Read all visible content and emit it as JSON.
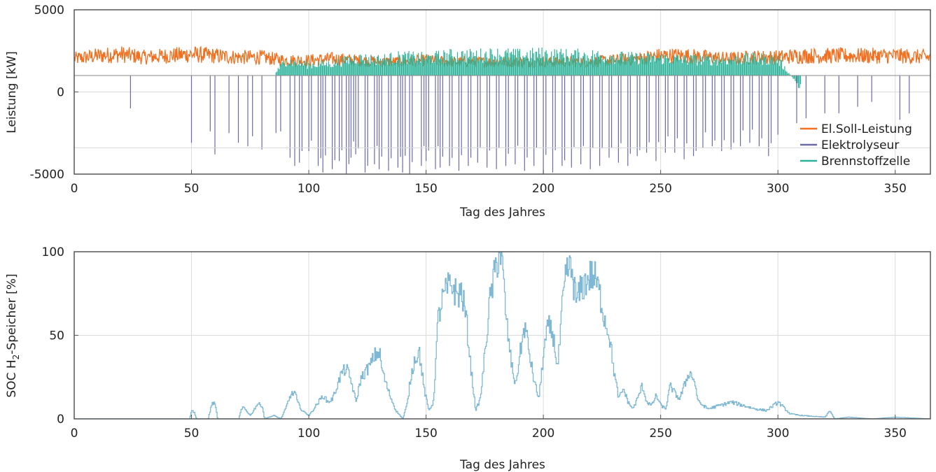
{
  "colors": {
    "soll": "#f07020",
    "elektrolyseur": "#6b6aa6",
    "brennstoffzelle": "#2bb39a",
    "soc": "#7fb8d4",
    "grid": "#dadada",
    "axis": "#555555"
  },
  "chart_data": [
    {
      "type": "line",
      "xlabel": "Tag des Jahres",
      "ylabel": "Leistung [kW]",
      "xlim": [
        0,
        365
      ],
      "ylim": [
        -5000,
        5000
      ],
      "x_ticks": [
        "0",
        "50",
        "100",
        "150",
        "200",
        "250",
        "300",
        "350"
      ],
      "y_ticks": [
        "5000",
        "0",
        "-5000"
      ],
      "grid": true,
      "legend_position": "bottom-right",
      "series": [
        {
          "name": "El.Soll-Leistung",
          "x": [
            0,
            10,
            20,
            30,
            40,
            50,
            60,
            70,
            80,
            90,
            100,
            110,
            120,
            130,
            140,
            150,
            160,
            170,
            180,
            190,
            200,
            210,
            220,
            230,
            240,
            250,
            260,
            270,
            280,
            290,
            300,
            310,
            320,
            330,
            340,
            350,
            365
          ],
          "y": [
            2100,
            2300,
            2400,
            2200,
            2300,
            2400,
            2300,
            2200,
            2200,
            2000,
            2000,
            2100,
            2000,
            1900,
            1900,
            2000,
            1900,
            1900,
            1900,
            1900,
            1900,
            1900,
            1900,
            2000,
            2100,
            2300,
            2300,
            2200,
            2100,
            2200,
            2200,
            2300,
            2300,
            2300,
            2300,
            2300,
            2200
          ]
        },
        {
          "name": "Elektrolyseur",
          "x": [
            0,
            24,
            50,
            58,
            60,
            66,
            70,
            74,
            76,
            80,
            86,
            88,
            92,
            94,
            96,
            100,
            104,
            106,
            110,
            113,
            116,
            118,
            120,
            124,
            128,
            130,
            134,
            138,
            140,
            143,
            148,
            150,
            154,
            156,
            160,
            164,
            168,
            172,
            176,
            180,
            184,
            188,
            192,
            196,
            200,
            204,
            208,
            212,
            216,
            220,
            224,
            228,
            232,
            236,
            240,
            244,
            248,
            252,
            256,
            260,
            264,
            268,
            272,
            276,
            280,
            284,
            288,
            292,
            296,
            300,
            308,
            312,
            320,
            326,
            334,
            340,
            352,
            356,
            365
          ],
          "y": [
            0,
            -1000,
            -3100,
            -2400,
            -3800,
            -2500,
            -3100,
            -3300,
            -2700,
            -3500,
            -2500,
            -2400,
            -4000,
            -4500,
            -4300,
            -3600,
            -4500,
            -4900,
            -4700,
            -4200,
            -5000,
            -4000,
            -3800,
            -4900,
            -4400,
            -4700,
            -4800,
            -4600,
            -4900,
            -5000,
            -4500,
            -4200,
            -4700,
            -4600,
            -4500,
            -4800,
            -4500,
            -4300,
            -4600,
            -4700,
            -4500,
            -4400,
            -4800,
            -4500,
            -5000,
            -4900,
            -4500,
            -4600,
            -4400,
            -4700,
            -4500,
            -4000,
            -4300,
            -4500,
            -3900,
            -3700,
            -4200,
            -3700,
            -3700,
            -4100,
            -3900,
            -3400,
            -3300,
            -3600,
            -3500,
            -3300,
            -3100,
            -3300,
            -3900,
            -2600,
            -1900,
            -1600,
            -1300,
            -1300,
            -900,
            -600,
            -1700,
            -1300,
            0
          ]
        },
        {
          "name": "Brennstoffzelle",
          "x": [
            0,
            80,
            90,
            100,
            110,
            120,
            130,
            140,
            150,
            160,
            170,
            180,
            190,
            200,
            210,
            220,
            230,
            240,
            250,
            260,
            270,
            280,
            290,
            300,
            310,
            365
          ],
          "y": [
            0,
            0,
            2100,
            1800,
            1900,
            2300,
            2200,
            2400,
            2300,
            2500,
            2500,
            2600,
            2500,
            2600,
            2500,
            2500,
            2400,
            2300,
            2300,
            2200,
            2200,
            2200,
            2300,
            2200,
            0,
            0
          ]
        }
      ]
    },
    {
      "type": "line",
      "xlabel": "Tag des Jahres",
      "ylabel": "SOC H2-Speicher [%]",
      "xlim": [
        0,
        365
      ],
      "ylim": [
        0,
        100
      ],
      "x_ticks": [
        "0",
        "50",
        "100",
        "150",
        "200",
        "250",
        "300",
        "350"
      ],
      "y_ticks": [
        "100",
        "50",
        "0"
      ],
      "grid": true,
      "series": [
        {
          "x": [
            0,
            49,
            50,
            51,
            52,
            57,
            58,
            59,
            60,
            61,
            65,
            70,
            71,
            72,
            75,
            78,
            80,
            81,
            85,
            88,
            90,
            92,
            94,
            95,
            97,
            100,
            102,
            104,
            106,
            108,
            110,
            112,
            113,
            114,
            116,
            118,
            120,
            122,
            124,
            126,
            128,
            130,
            131,
            133,
            135,
            137,
            140,
            142,
            143,
            145,
            147,
            149,
            151,
            153,
            155,
            157,
            159,
            161,
            163,
            165,
            167,
            169,
            171,
            173,
            175,
            177,
            179,
            181,
            182,
            184,
            186,
            188,
            190,
            192,
            194,
            196,
            198,
            200,
            202,
            204,
            206,
            208,
            210,
            212,
            214,
            216,
            218,
            220,
            222,
            224,
            226,
            228,
            230,
            232,
            234,
            236,
            238,
            240,
            242,
            244,
            246,
            248,
            250,
            252,
            254,
            256,
            258,
            260,
            262,
            264,
            266,
            270,
            275,
            280,
            285,
            290,
            295,
            298,
            300,
            305,
            310,
            320,
            322,
            324,
            330,
            340,
            350,
            365
          ],
          "y": [
            0,
            0,
            5,
            4,
            0,
            0,
            6,
            10,
            8,
            0,
            0,
            0,
            5,
            7,
            2,
            9,
            8,
            0,
            2,
            0,
            6,
            14,
            16,
            10,
            5,
            2,
            6,
            10,
            14,
            10,
            12,
            20,
            24,
            28,
            30,
            22,
            10,
            24,
            28,
            32,
            38,
            40,
            30,
            20,
            12,
            5,
            0,
            10,
            22,
            36,
            40,
            18,
            5,
            10,
            60,
            72,
            78,
            80,
            74,
            76,
            60,
            30,
            5,
            12,
            40,
            70,
            86,
            100,
            98,
            60,
            35,
            20,
            40,
            56,
            38,
            22,
            12,
            40,
            56,
            50,
            30,
            68,
            90,
            88,
            70,
            78,
            82,
            86,
            84,
            74,
            60,
            50,
            28,
            12,
            18,
            10,
            6,
            12,
            20,
            10,
            8,
            14,
            8,
            6,
            20,
            15,
            12,
            20,
            28,
            24,
            10,
            6,
            8,
            10,
            8,
            6,
            5,
            8,
            10,
            3,
            2,
            1,
            5,
            0,
            1,
            0,
            1,
            0
          ]
        }
      ]
    }
  ]
}
